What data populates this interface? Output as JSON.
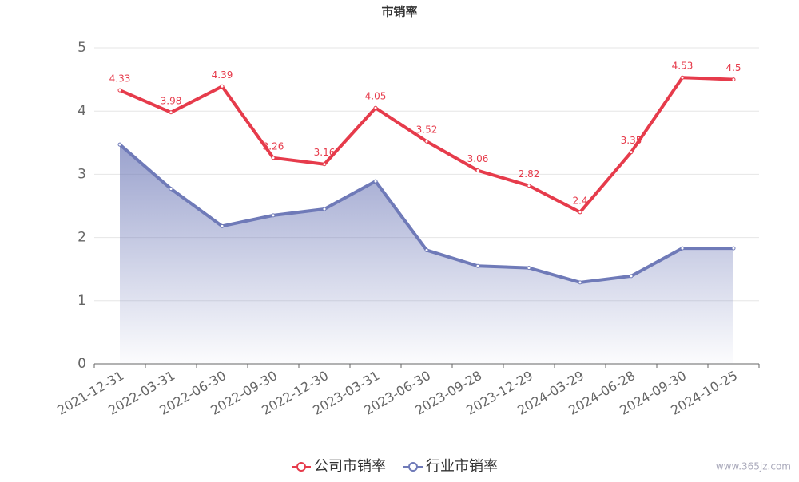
{
  "chart_data": {
    "type": "line",
    "title": "市销率",
    "categories": [
      "2021-12-31",
      "2022-03-31",
      "2022-06-30",
      "2022-09-30",
      "2022-12-30",
      "2023-03-31",
      "2023-06-30",
      "2023-09-28",
      "2023-12-29",
      "2024-03-29",
      "2024-06-28",
      "2024-09-30",
      "2024-10-25"
    ],
    "series": [
      {
        "name": "公司市销率",
        "color": "#e63b4b",
        "values": [
          4.33,
          3.98,
          4.39,
          3.26,
          3.16,
          4.05,
          3.52,
          3.06,
          2.82,
          2.4,
          3.35,
          4.53,
          4.5
        ]
      },
      {
        "name": "行业市销率",
        "color": "#6f7ab8",
        "values": [
          3.47,
          2.77,
          2.18,
          2.35,
          2.45,
          2.89,
          1.8,
          1.55,
          1.52,
          1.29,
          1.39,
          1.83,
          1.83
        ]
      }
    ],
    "ylim": [
      0,
      5
    ],
    "yticks": [
      0,
      1,
      2,
      3,
      4,
      5
    ],
    "grid": true,
    "watermark": "www.365jz.com"
  }
}
